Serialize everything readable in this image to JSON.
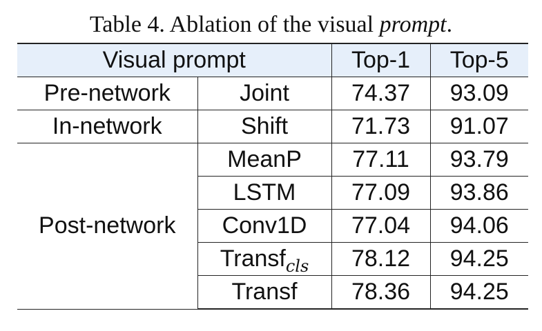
{
  "caption": {
    "prefix": "Table 4. Ablation of the visual ",
    "italic": "prompt",
    "suffix": "."
  },
  "header": {
    "visual_prompt": "Visual prompt",
    "top1": "Top-1",
    "top5": "Top-5"
  },
  "groups": {
    "pre": "Pre-network",
    "in": "In-network",
    "post": "Post-network"
  },
  "rows": [
    {
      "method": "Joint",
      "sub": "",
      "top1": "74.37",
      "top5": "93.09"
    },
    {
      "method": "Shift",
      "sub": "",
      "top1": "71.73",
      "top5": "91.07"
    },
    {
      "method": "MeanP",
      "sub": "",
      "top1": "77.11",
      "top5": "93.79"
    },
    {
      "method": "LSTM",
      "sub": "",
      "top1": "77.09",
      "top5": "93.86"
    },
    {
      "method": "Conv1D",
      "sub": "",
      "top1": "77.04",
      "top5": "94.06"
    },
    {
      "method": "Transf",
      "sub": "cls",
      "top1": "78.12",
      "top5": "94.25"
    },
    {
      "method": "Transf",
      "sub": "",
      "top1": "78.36",
      "top5": "94.25"
    }
  ]
}
